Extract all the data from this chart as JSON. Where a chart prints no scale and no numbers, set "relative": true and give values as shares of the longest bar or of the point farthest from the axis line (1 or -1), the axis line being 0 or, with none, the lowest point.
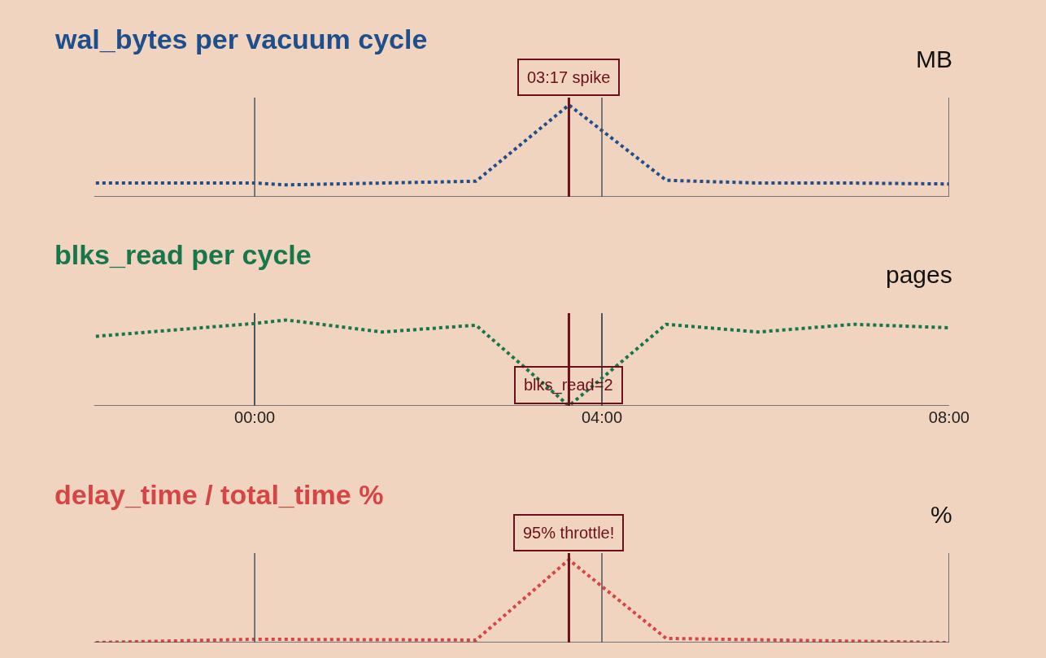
{
  "chart_data": [
    {
      "type": "line",
      "title": "wal_bytes per vacuum cycle",
      "ylabel": "MB",
      "relative": true,
      "color": "#1f4e8c",
      "x": [
        -1.83,
        0,
        0.36,
        1.47,
        2.55,
        3.62,
        4.74,
        5.8,
        6.9,
        8.0
      ],
      "values": [
        0.15,
        0.15,
        0.13,
        0.15,
        0.17,
        1.0,
        0.18,
        0.15,
        0.15,
        0.14
      ],
      "xlim": [
        -1.85,
        8.0
      ],
      "xticks": [
        {
          "value": 0,
          "label": null
        },
        {
          "value": 4,
          "label": null
        },
        {
          "value": 8,
          "label": null
        }
      ],
      "grid": "x",
      "tick_labels": false,
      "line_style": "dotted",
      "ref_lines": [
        {
          "axis": "x",
          "value": 3.62,
          "label": null,
          "color": "#6b0f1a"
        }
      ],
      "annotations": [
        "03:17 spike"
      ]
    },
    {
      "type": "line",
      "title": "blks_read per cycle",
      "ylabel": "pages",
      "relative": true,
      "color": "#17764a",
      "x": [
        -1.83,
        0,
        0.36,
        1.47,
        2.55,
        3.62,
        4.74,
        5.8,
        6.9,
        8.0
      ],
      "values": [
        0.81,
        0.96,
        1.0,
        0.86,
        0.94,
        0.0,
        0.95,
        0.86,
        0.95,
        0.91
      ],
      "xlim": [
        -1.85,
        8.0
      ],
      "xticks": [
        {
          "value": 0,
          "label": "00:00"
        },
        {
          "value": 4,
          "label": "04:00"
        },
        {
          "value": 8,
          "label": "08:00"
        }
      ],
      "grid": "x",
      "tick_labels": "x",
      "line_style": "dotted",
      "ref_lines": [
        {
          "axis": "x",
          "value": 3.62,
          "label": null,
          "color": "#6b0f1a"
        }
      ],
      "annotations": [
        "blks_read=2"
      ]
    },
    {
      "type": "line",
      "title": "delay_time / total_time %",
      "ylabel": "%",
      "relative": true,
      "color": "#d64545",
      "x": [
        -1.83,
        0,
        2.55,
        3.62,
        4.74,
        8.0
      ],
      "values": [
        0.0,
        0.04,
        0.03,
        1.0,
        0.05,
        0.0
      ],
      "xlim": [
        -1.85,
        8.0
      ],
      "xticks": [
        {
          "value": 0,
          "label": null
        },
        {
          "value": 4,
          "label": null
        },
        {
          "value": 8,
          "label": null
        }
      ],
      "grid": "x",
      "tick_labels": false,
      "line_style": "dotted",
      "ref_lines": [
        {
          "axis": "x",
          "value": 3.62,
          "label": null,
          "color": "#6b0f1a"
        }
      ],
      "annotations": [
        "95% throttle!"
      ]
    }
  ]
}
